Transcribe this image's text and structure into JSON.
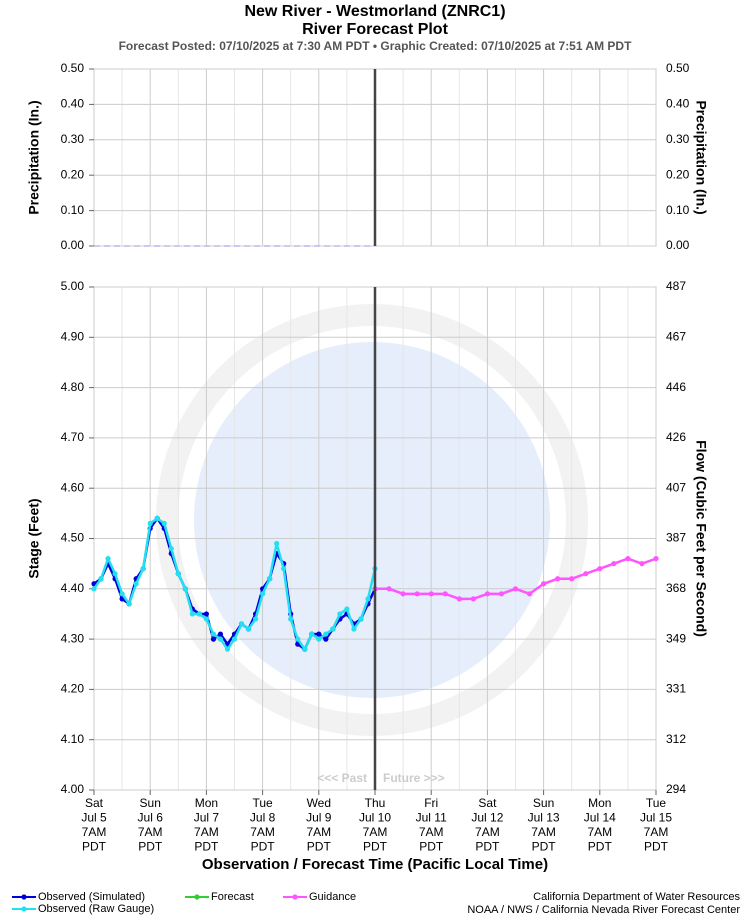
{
  "header": {
    "title": "New River - Westmorland (ZNRC1)",
    "subtitle": "River Forecast Plot",
    "info": "Forecast Posted: 07/10/2025 at 7:30 AM PDT  •  Graphic Created: 07/10/2025 at 7:51 AM PDT"
  },
  "chart_data": [
    {
      "type": "line",
      "ylabel": "Precipitation (In.)",
      "y2label": "Precipitation (In.)",
      "xlim": [
        0,
        10
      ],
      "ylim": [
        0,
        0.5
      ],
      "yticks": [
        {
          "value": 0,
          "label": "0.00"
        },
        {
          "value": 0.1,
          "label": "0.10"
        },
        {
          "value": 0.2,
          "label": "0.20"
        },
        {
          "value": 0.3,
          "label": "0.30"
        },
        {
          "value": 0.4,
          "label": "0.40"
        },
        {
          "value": 0.5,
          "label": "0.50"
        }
      ],
      "grid": true,
      "now": 5,
      "series": [
        {
          "color": "#b8b8f0",
          "dashed": true,
          "x": [
            0,
            5
          ],
          "values": [
            0,
            0
          ]
        }
      ]
    },
    {
      "type": "line",
      "ylabel": "Stage (Feet)",
      "y2label": "Flow (Cubic Feet per Second)",
      "xlabel": "Observation / Forecast Time (Pacific Local Time)",
      "xlim": [
        0,
        10
      ],
      "ylim": [
        4,
        5
      ],
      "xticks": [
        {
          "value": 0,
          "label": [
            "Sat",
            "Jul 5",
            "7AM",
            "PDT"
          ]
        },
        {
          "value": 1,
          "label": [
            "Sun",
            "Jul 6",
            "7AM",
            "PDT"
          ]
        },
        {
          "value": 2,
          "label": [
            "Mon",
            "Jul 7",
            "7AM",
            "PDT"
          ]
        },
        {
          "value": 3,
          "label": [
            "Tue",
            "Jul 8",
            "7AM",
            "PDT"
          ]
        },
        {
          "value": 4,
          "label": [
            "Wed",
            "Jul 9",
            "7AM",
            "PDT"
          ]
        },
        {
          "value": 5,
          "label": [
            "Thu",
            "Jul 10",
            "7AM",
            "PDT"
          ]
        },
        {
          "value": 6,
          "label": [
            "Fri",
            "Jul 11",
            "7AM",
            "PDT"
          ]
        },
        {
          "value": 7,
          "label": [
            "Sat",
            "Jul 12",
            "7AM",
            "PDT"
          ]
        },
        {
          "value": 8,
          "label": [
            "Sun",
            "Jul 13",
            "7AM",
            "PDT"
          ]
        },
        {
          "value": 9,
          "label": [
            "Mon",
            "Jul 14",
            "7AM",
            "PDT"
          ]
        },
        {
          "value": 10,
          "label": [
            "Tue",
            "Jul 15",
            "7AM",
            "PDT"
          ]
        }
      ],
      "yticks": [
        {
          "value": 4,
          "label": "4.00"
        },
        {
          "value": 4.1,
          "label": "4.10"
        },
        {
          "value": 4.2,
          "label": "4.20"
        },
        {
          "value": 4.3,
          "label": "4.30"
        },
        {
          "value": 4.4,
          "label": "4.40"
        },
        {
          "value": 4.5,
          "label": "4.50"
        },
        {
          "value": 4.6,
          "label": "4.60"
        },
        {
          "value": 4.7,
          "label": "4.70"
        },
        {
          "value": 4.8,
          "label": "4.80"
        },
        {
          "value": 4.9,
          "label": "4.90"
        },
        {
          "value": 5,
          "label": "5.00"
        }
      ],
      "y2lim": [
        294,
        487
      ],
      "y2ticks": [
        294,
        312,
        331,
        349,
        368,
        387,
        407,
        426,
        446,
        467,
        487
      ],
      "grid": true,
      "now": 5,
      "past_label": "<<< Past",
      "future_label": "Future >>>",
      "series": [
        {
          "name": "Observed (Simulated)",
          "color": "#0000dd",
          "x": [
            0,
            0.125,
            0.25,
            0.375,
            0.5,
            0.625,
            0.75,
            0.875,
            1,
            1.125,
            1.25,
            1.375,
            1.5,
            1.625,
            1.75,
            1.875,
            2,
            2.125,
            2.25,
            2.375,
            2.5,
            2.625,
            2.75,
            2.875,
            3,
            3.125,
            3.25,
            3.375,
            3.5,
            3.625,
            3.75,
            3.875,
            4,
            4.125,
            4.25,
            4.375,
            4.5,
            4.625,
            4.75,
            4.875,
            5
          ],
          "values": [
            4.41,
            4.42,
            4.45,
            4.42,
            4.38,
            4.37,
            4.42,
            4.44,
            4.52,
            4.54,
            4.52,
            4.47,
            4.43,
            4.4,
            4.36,
            4.35,
            4.35,
            4.3,
            4.31,
            4.29,
            4.31,
            4.33,
            4.32,
            4.35,
            4.4,
            4.42,
            4.47,
            4.45,
            4.35,
            4.29,
            4.28,
            4.31,
            4.31,
            4.3,
            4.32,
            4.34,
            4.35,
            4.33,
            4.34,
            4.37,
            4.4
          ]
        },
        {
          "name": "Observed (Raw Gauge)",
          "color": "#22e0f0",
          "x": [
            0,
            0.125,
            0.25,
            0.375,
            0.5,
            0.625,
            0.75,
            0.875,
            1,
            1.125,
            1.25,
            1.375,
            1.5,
            1.625,
            1.75,
            1.875,
            2,
            2.125,
            2.25,
            2.375,
            2.5,
            2.625,
            2.75,
            2.875,
            3,
            3.125,
            3.25,
            3.375,
            3.5,
            3.625,
            3.75,
            3.875,
            4,
            4.125,
            4.25,
            4.375,
            4.5,
            4.625,
            4.75,
            4.875,
            5
          ],
          "values": [
            4.4,
            4.42,
            4.46,
            4.43,
            4.39,
            4.37,
            4.41,
            4.44,
            4.53,
            4.54,
            4.53,
            4.48,
            4.43,
            4.4,
            4.35,
            4.35,
            4.34,
            4.31,
            4.3,
            4.28,
            4.3,
            4.33,
            4.32,
            4.34,
            4.39,
            4.42,
            4.49,
            4.44,
            4.34,
            4.3,
            4.28,
            4.31,
            4.3,
            4.31,
            4.32,
            4.35,
            4.36,
            4.32,
            4.34,
            4.38,
            4.44
          ]
        },
        {
          "name": "Forecast",
          "color": "#33cc33",
          "x": [],
          "values": []
        },
        {
          "name": "Guidance",
          "color": "#ff55ff",
          "x": [
            5,
            5.25,
            5.5,
            5.75,
            6,
            6.25,
            6.5,
            6.75,
            7,
            7.25,
            7.5,
            7.75,
            8,
            8.25,
            8.5,
            8.75,
            9,
            9.25,
            9.5,
            9.75,
            10
          ],
          "values": [
            4.4,
            4.4,
            4.39,
            4.39,
            4.39,
            4.39,
            4.38,
            4.38,
            4.39,
            4.39,
            4.4,
            4.39,
            4.41,
            4.42,
            4.42,
            4.43,
            4.44,
            4.45,
            4.46,
            4.45,
            4.46
          ]
        }
      ]
    }
  ],
  "footer": {
    "credits": [
      "California Department of Water Resources",
      "NOAA / NWS / California Nevada River Forecast Center"
    ]
  }
}
